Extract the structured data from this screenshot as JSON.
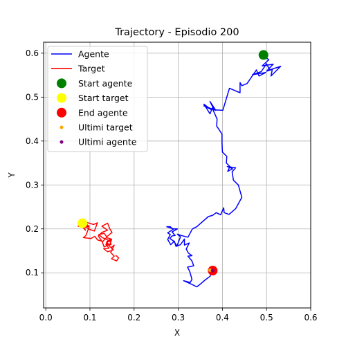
{
  "chart_data": {
    "type": "line",
    "title": "Trajectory - Episodio 200",
    "xlabel": "X",
    "ylabel": "Y",
    "xlim": [
      -0.005,
      0.6
    ],
    "ylim": [
      0.02,
      0.625
    ],
    "xticks": [
      "0.0",
      "0.1",
      "0.2",
      "0.3",
      "0.4",
      "0.5",
      "0.6"
    ],
    "yticks": [
      "0.1",
      "0.2",
      "0.3",
      "0.4",
      "0.5",
      "0.6"
    ],
    "grid": true,
    "legend_position": "upper-left",
    "series": [
      {
        "name": "Agente",
        "kind": "line",
        "color": "#0000ff",
        "points": [
          [
            0.493,
            0.596
          ],
          [
            0.505,
            0.585
          ],
          [
            0.49,
            0.571
          ],
          [
            0.515,
            0.575
          ],
          [
            0.5,
            0.559
          ],
          [
            0.513,
            0.563
          ],
          [
            0.51,
            0.548
          ],
          [
            0.532,
            0.57
          ],
          [
            0.507,
            0.562
          ],
          [
            0.5,
            0.576
          ],
          [
            0.488,
            0.558
          ],
          [
            0.468,
            0.551
          ],
          [
            0.498,
            0.556
          ],
          [
            0.483,
            0.548
          ],
          [
            0.477,
            0.562
          ],
          [
            0.456,
            0.531
          ],
          [
            0.444,
            0.526
          ],
          [
            0.44,
            0.533
          ],
          [
            0.44,
            0.51
          ],
          [
            0.416,
            0.52
          ],
          [
            0.401,
            0.47
          ],
          [
            0.381,
            0.471
          ],
          [
            0.372,
            0.49
          ],
          [
            0.385,
            0.47
          ],
          [
            0.358,
            0.48
          ],
          [
            0.374,
            0.472
          ],
          [
            0.358,
            0.484
          ],
          [
            0.372,
            0.462
          ],
          [
            0.377,
            0.475
          ],
          [
            0.388,
            0.45
          ],
          [
            0.387,
            0.434
          ],
          [
            0.399,
            0.416
          ],
          [
            0.399,
            0.396
          ],
          [
            0.4,
            0.375
          ],
          [
            0.41,
            0.365
          ],
          [
            0.409,
            0.35
          ],
          [
            0.417,
            0.342
          ],
          [
            0.412,
            0.331
          ],
          [
            0.423,
            0.337
          ],
          [
            0.411,
            0.342
          ],
          [
            0.43,
            0.339
          ],
          [
            0.422,
            0.33
          ],
          [
            0.425,
            0.311
          ],
          [
            0.436,
            0.3
          ],
          [
            0.444,
            0.272
          ],
          [
            0.43,
            0.246
          ],
          [
            0.415,
            0.233
          ],
          [
            0.404,
            0.237
          ],
          [
            0.403,
            0.248
          ],
          [
            0.396,
            0.232
          ],
          [
            0.386,
            0.237
          ],
          [
            0.378,
            0.231
          ],
          [
            0.368,
            0.228
          ],
          [
            0.342,
            0.205
          ],
          [
            0.332,
            0.2
          ],
          [
            0.322,
            0.181
          ],
          [
            0.307,
            0.185
          ],
          [
            0.298,
            0.188
          ],
          [
            0.305,
            0.182
          ],
          [
            0.297,
            0.161
          ],
          [
            0.29,
            0.172
          ],
          [
            0.281,
            0.178
          ],
          [
            0.286,
            0.184
          ],
          [
            0.293,
            0.185
          ],
          [
            0.286,
            0.193
          ],
          [
            0.298,
            0.2
          ],
          [
            0.287,
            0.2
          ],
          [
            0.282,
            0.205
          ],
          [
            0.274,
            0.205
          ],
          [
            0.29,
            0.2
          ],
          [
            0.276,
            0.191
          ],
          [
            0.282,
            0.187
          ],
          [
            0.276,
            0.176
          ],
          [
            0.283,
            0.164
          ],
          [
            0.291,
            0.172
          ],
          [
            0.295,
            0.16
          ],
          [
            0.305,
            0.164
          ],
          [
            0.314,
            0.177
          ],
          [
            0.314,
            0.163
          ],
          [
            0.325,
            0.168
          ],
          [
            0.318,
            0.154
          ],
          [
            0.323,
            0.145
          ],
          [
            0.331,
            0.139
          ],
          [
            0.322,
            0.138
          ],
          [
            0.331,
            0.127
          ],
          [
            0.335,
            0.116
          ],
          [
            0.321,
            0.113
          ],
          [
            0.326,
            0.103
          ],
          [
            0.331,
            0.085
          ],
          [
            0.327,
            0.078
          ],
          [
            0.312,
            0.082
          ],
          [
            0.33,
            0.074
          ],
          [
            0.342,
            0.068
          ],
          [
            0.351,
            0.075
          ],
          [
            0.36,
            0.083
          ],
          [
            0.372,
            0.092
          ],
          [
            0.378,
            0.105
          ],
          [
            0.373,
            0.097
          ],
          [
            0.378,
            0.105
          ]
        ]
      },
      {
        "name": "Target",
        "kind": "line",
        "color": "#ff0000",
        "points": [
          [
            0.083,
            0.213
          ],
          [
            0.095,
            0.214
          ],
          [
            0.108,
            0.21
          ],
          [
            0.117,
            0.214
          ],
          [
            0.11,
            0.195
          ],
          [
            0.097,
            0.2
          ],
          [
            0.083,
            0.211
          ],
          [
            0.09,
            0.197
          ],
          [
            0.079,
            0.209
          ],
          [
            0.09,
            0.212
          ],
          [
            0.098,
            0.206
          ],
          [
            0.086,
            0.203
          ],
          [
            0.073,
            0.206
          ],
          [
            0.087,
            0.212
          ],
          [
            0.098,
            0.204
          ],
          [
            0.091,
            0.185
          ],
          [
            0.085,
            0.18
          ],
          [
            0.102,
            0.178
          ],
          [
            0.111,
            0.183
          ],
          [
            0.117,
            0.175
          ],
          [
            0.127,
            0.172
          ],
          [
            0.119,
            0.184
          ],
          [
            0.127,
            0.192
          ],
          [
            0.14,
            0.197
          ],
          [
            0.127,
            0.206
          ],
          [
            0.14,
            0.213
          ],
          [
            0.145,
            0.2
          ],
          [
            0.15,
            0.192
          ],
          [
            0.138,
            0.182
          ],
          [
            0.132,
            0.19
          ],
          [
            0.12,
            0.187
          ],
          [
            0.128,
            0.18
          ],
          [
            0.145,
            0.173
          ],
          [
            0.148,
            0.164
          ],
          [
            0.136,
            0.165
          ],
          [
            0.143,
            0.156
          ],
          [
            0.131,
            0.155
          ],
          [
            0.14,
            0.148
          ],
          [
            0.153,
            0.152
          ],
          [
            0.145,
            0.16
          ],
          [
            0.138,
            0.171
          ],
          [
            0.148,
            0.177
          ],
          [
            0.137,
            0.18
          ],
          [
            0.128,
            0.17
          ],
          [
            0.132,
            0.159
          ],
          [
            0.146,
            0.166
          ],
          [
            0.149,
            0.176
          ],
          [
            0.137,
            0.168
          ],
          [
            0.148,
            0.157
          ],
          [
            0.155,
            0.163
          ],
          [
            0.147,
            0.146
          ],
          [
            0.155,
            0.138
          ],
          [
            0.149,
            0.132
          ],
          [
            0.16,
            0.127
          ],
          [
            0.165,
            0.134
          ],
          [
            0.158,
            0.14
          ]
        ]
      }
    ],
    "markers": [
      {
        "name": "Start agente",
        "x": 0.493,
        "y": 0.596,
        "color": "#008000",
        "size": "large"
      },
      {
        "name": "Start target",
        "x": 0.083,
        "y": 0.213,
        "color": "#ffff00",
        "size": "large"
      },
      {
        "name": "End agente",
        "x": 0.378,
        "y": 0.105,
        "color": "#ff0000",
        "size": "large"
      },
      {
        "name": "Ultimi target",
        "x": 0.372,
        "y": 0.106,
        "color": "#ffa500",
        "size": "small"
      },
      {
        "name": "Ultimi agente",
        "x": 0.378,
        "y": 0.105,
        "color": "#800080",
        "size": "small"
      }
    ],
    "legend": [
      {
        "label": "Agente",
        "type": "line",
        "color": "#0000ff"
      },
      {
        "label": "Target",
        "type": "line",
        "color": "#ff0000"
      },
      {
        "label": "Start agente",
        "type": "marker-large",
        "color": "#008000"
      },
      {
        "label": "Start target",
        "type": "marker-large",
        "color": "#ffff00"
      },
      {
        "label": "End agente",
        "type": "marker-large",
        "color": "#ff0000"
      },
      {
        "label": "Ultimi target",
        "type": "marker-small",
        "color": "#ffa500"
      },
      {
        "label": "Ultimi agente",
        "type": "marker-small",
        "color": "#800080"
      }
    ]
  }
}
